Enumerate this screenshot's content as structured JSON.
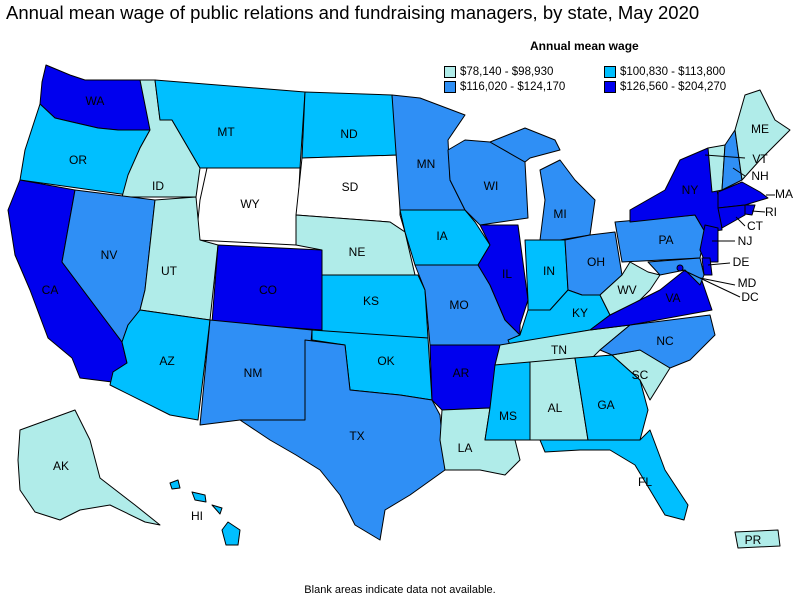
{
  "title": "Annual mean wage of public relations and fundraising managers, by state, May 2020",
  "legend": {
    "title": "Annual mean wage",
    "items": [
      {
        "label": "$78,140 - $98,930",
        "color": "#b0ece9"
      },
      {
        "label": "$100,830 - $113,800",
        "color": "#00bfff"
      },
      {
        "label": "$116,020 - $124,170",
        "color": "#2f8ff5"
      },
      {
        "label": "$126,560 - $204,270",
        "color": "#0000ee"
      }
    ]
  },
  "footnote": "Blank areas indicate data not available.",
  "colors": {
    "c1": "#b0ece9",
    "c2": "#00bfff",
    "c3": "#2f8ff5",
    "c4": "#0000ee",
    "none": "#ffffff"
  },
  "states": [
    {
      "abbr": "WA",
      "cls": "c4"
    },
    {
      "abbr": "OR",
      "cls": "c2"
    },
    {
      "abbr": "CA",
      "cls": "c4"
    },
    {
      "abbr": "ID",
      "cls": "c1"
    },
    {
      "abbr": "NV",
      "cls": "c3"
    },
    {
      "abbr": "MT",
      "cls": "c2"
    },
    {
      "abbr": "WY",
      "cls": "none"
    },
    {
      "abbr": "UT",
      "cls": "c1"
    },
    {
      "abbr": "AZ",
      "cls": "c2"
    },
    {
      "abbr": "CO",
      "cls": "c4"
    },
    {
      "abbr": "NM",
      "cls": "c3"
    },
    {
      "abbr": "ND",
      "cls": "c2"
    },
    {
      "abbr": "SD",
      "cls": "none"
    },
    {
      "abbr": "NE",
      "cls": "c1"
    },
    {
      "abbr": "KS",
      "cls": "c2"
    },
    {
      "abbr": "OK",
      "cls": "c2"
    },
    {
      "abbr": "TX",
      "cls": "c3"
    },
    {
      "abbr": "MN",
      "cls": "c3"
    },
    {
      "abbr": "IA",
      "cls": "c2"
    },
    {
      "abbr": "MO",
      "cls": "c3"
    },
    {
      "abbr": "AR",
      "cls": "c4"
    },
    {
      "abbr": "LA",
      "cls": "c1"
    },
    {
      "abbr": "WI",
      "cls": "c3"
    },
    {
      "abbr": "IL",
      "cls": "c4"
    },
    {
      "abbr": "MI",
      "cls": "c3"
    },
    {
      "abbr": "IN",
      "cls": "c2"
    },
    {
      "abbr": "OH",
      "cls": "c3"
    },
    {
      "abbr": "KY",
      "cls": "c2"
    },
    {
      "abbr": "TN",
      "cls": "c1"
    },
    {
      "abbr": "MS",
      "cls": "c2"
    },
    {
      "abbr": "AL",
      "cls": "c1"
    },
    {
      "abbr": "GA",
      "cls": "c2"
    },
    {
      "abbr": "FL",
      "cls": "c2"
    },
    {
      "abbr": "SC",
      "cls": "c1"
    },
    {
      "abbr": "NC",
      "cls": "c3"
    },
    {
      "abbr": "VA",
      "cls": "c4"
    },
    {
      "abbr": "WV",
      "cls": "c1"
    },
    {
      "abbr": "PA",
      "cls": "c3"
    },
    {
      "abbr": "NY",
      "cls": "c4"
    },
    {
      "abbr": "VT",
      "cls": "c1"
    },
    {
      "abbr": "NH",
      "cls": "c3"
    },
    {
      "abbr": "ME",
      "cls": "c1"
    },
    {
      "abbr": "MA",
      "cls": "c4"
    },
    {
      "abbr": "RI",
      "cls": "c4"
    },
    {
      "abbr": "CT",
      "cls": "c4"
    },
    {
      "abbr": "NJ",
      "cls": "c4"
    },
    {
      "abbr": "DE",
      "cls": "c4"
    },
    {
      "abbr": "MD",
      "cls": "c3"
    },
    {
      "abbr": "DC",
      "cls": "c4"
    },
    {
      "abbr": "AK",
      "cls": "c1"
    },
    {
      "abbr": "HI",
      "cls": "c2"
    },
    {
      "abbr": "PR",
      "cls": "c1"
    }
  ]
}
